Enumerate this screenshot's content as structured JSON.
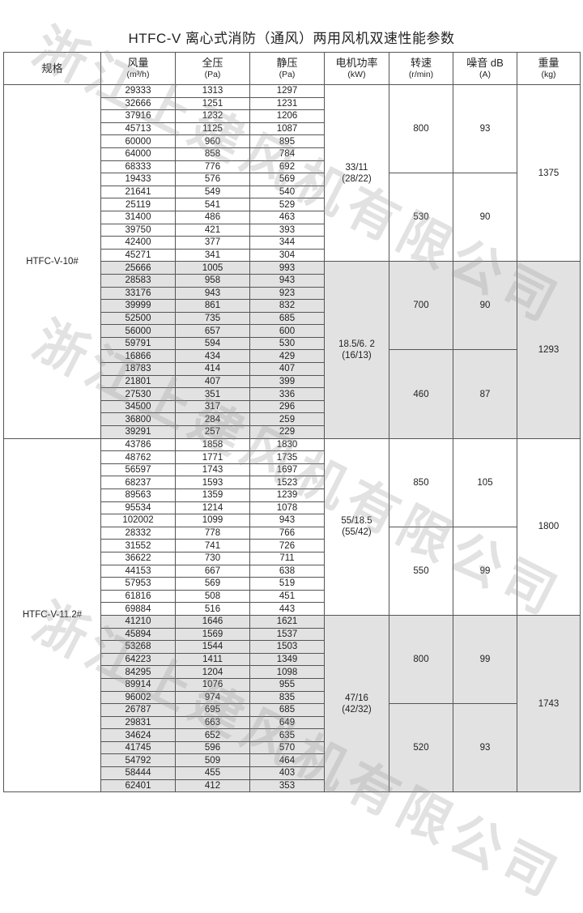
{
  "title": "HTFC-V 离心式消防（通风）两用风机双速性能参数",
  "watermark": "浙江上建风机有限公司",
  "headers": [
    {
      "label": "规格",
      "unit": ""
    },
    {
      "label": "风量",
      "unit": "(m³/h)"
    },
    {
      "label": "全压",
      "unit": "(Pa)"
    },
    {
      "label": "静压",
      "unit": "(Pa)"
    },
    {
      "label": "电机功率",
      "unit": "(kW)"
    },
    {
      "label": "转速",
      "unit": "(r/min)"
    },
    {
      "label": "噪音 dB",
      "unit": "(A)"
    },
    {
      "label": "重量",
      "unit": "(kg)"
    }
  ],
  "models": [
    {
      "name": "HTFC-V-10#",
      "groups": [
        {
          "power": "33/11",
          "power2": "(28/22)",
          "weight": "1375",
          "shaded": false,
          "speeds": [
            {
              "rpm": "800",
              "noise": "93",
              "rows": [
                [
                  "29333",
                  "1313",
                  "1297"
                ],
                [
                  "32666",
                  "1251",
                  "1231"
                ],
                [
                  "37916",
                  "1232",
                  "1206"
                ],
                [
                  "45713",
                  "1125",
                  "1087"
                ],
                [
                  "60000",
                  "960",
                  "895"
                ],
                [
                  "64000",
                  "858",
                  "784"
                ],
                [
                  "68333",
                  "776",
                  "692"
                ]
              ]
            },
            {
              "rpm": "530",
              "noise": "90",
              "rows": [
                [
                  "19433",
                  "576",
                  "569"
                ],
                [
                  "21641",
                  "549",
                  "540"
                ],
                [
                  "25119",
                  "541",
                  "529"
                ],
                [
                  "31400",
                  "486",
                  "463"
                ],
                [
                  "39750",
                  "421",
                  "393"
                ],
                [
                  "42400",
                  "377",
                  "344"
                ],
                [
                  "45271",
                  "341",
                  "304"
                ]
              ]
            }
          ]
        },
        {
          "power": "18.5/6. 2",
          "power2": "(16/13)",
          "weight": "1293",
          "shaded": true,
          "speeds": [
            {
              "rpm": "700",
              "noise": "90",
              "rows": [
                [
                  "25666",
                  "1005",
                  "993"
                ],
                [
                  "28583",
                  "958",
                  "943"
                ],
                [
                  "33176",
                  "943",
                  "923"
                ],
                [
                  "39999",
                  "861",
                  "832"
                ],
                [
                  "52500",
                  "735",
                  "685"
                ],
                [
                  "56000",
                  "657",
                  "600"
                ],
                [
                  "59791",
                  "594",
                  "530"
                ]
              ]
            },
            {
              "rpm": "460",
              "noise": "87",
              "rows": [
                [
                  "16866",
                  "434",
                  "429"
                ],
                [
                  "18783",
                  "414",
                  "407"
                ],
                [
                  "21801",
                  "407",
                  "399"
                ],
                [
                  "27530",
                  "351",
                  "336"
                ],
                [
                  "34500",
                  "317",
                  "296"
                ],
                [
                  "36800",
                  "284",
                  "259"
                ],
                [
                  "39291",
                  "257",
                  "229"
                ]
              ]
            }
          ]
        }
      ]
    },
    {
      "name": "HTFC-V-11.2#",
      "groups": [
        {
          "power": "55/18.5",
          "power2": "(55/42)",
          "weight": "1800",
          "shaded": false,
          "speeds": [
            {
              "rpm": "850",
              "noise": "105",
              "rows": [
                [
                  "43786",
                  "1858",
                  "1830"
                ],
                [
                  "48762",
                  "1771",
                  "1735"
                ],
                [
                  "56597",
                  "1743",
                  "1697"
                ],
                [
                  "68237",
                  "1593",
                  "1523"
                ],
                [
                  "89563",
                  "1359",
                  "1239"
                ],
                [
                  "95534",
                  "1214",
                  "1078"
                ],
                [
                  "102002",
                  "1099",
                  "943"
                ]
              ]
            },
            {
              "rpm": "550",
              "noise": "99",
              "rows": [
                [
                  "28332",
                  "778",
                  "766"
                ],
                [
                  "31552",
                  "741",
                  "726"
                ],
                [
                  "36622",
                  "730",
                  "711"
                ],
                [
                  "44153",
                  "667",
                  "638"
                ],
                [
                  "57953",
                  "569",
                  "519"
                ],
                [
                  "61816",
                  "508",
                  "451"
                ],
                [
                  "69884",
                  "516",
                  "443"
                ]
              ]
            }
          ]
        },
        {
          "power": "47/16",
          "power2": "(42/32)",
          "weight": "1743",
          "shaded": true,
          "speeds": [
            {
              "rpm": "800",
              "noise": "99",
              "rows": [
                [
                  "41210",
                  "1646",
                  "1621"
                ],
                [
                  "45894",
                  "1569",
                  "1537"
                ],
                [
                  "53268",
                  "1544",
                  "1503"
                ],
                [
                  "64223",
                  "1411",
                  "1349"
                ],
                [
                  "84295",
                  "1204",
                  "1098"
                ],
                [
                  "89914",
                  "1076",
                  "955"
                ],
                [
                  "96002",
                  "974",
                  "835"
                ]
              ]
            },
            {
              "rpm": "520",
              "noise": "93",
              "rows": [
                [
                  "26787",
                  "695",
                  "685"
                ],
                [
                  "29831",
                  "663",
                  "649"
                ],
                [
                  "34624",
                  "652",
                  "635"
                ],
                [
                  "41745",
                  "596",
                  "570"
                ],
                [
                  "54792",
                  "509",
                  "464"
                ],
                [
                  "58444",
                  "455",
                  "403"
                ],
                [
                  "62401",
                  "412",
                  "353"
                ]
              ]
            }
          ]
        }
      ]
    }
  ]
}
